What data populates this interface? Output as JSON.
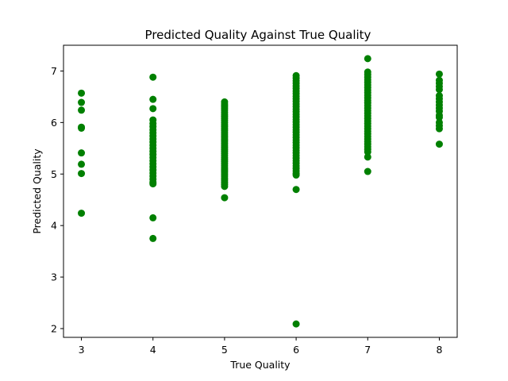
{
  "chart_data": {
    "type": "scatter",
    "title": "Predicted Quality Against True Quality",
    "xlabel": "True Quality",
    "ylabel": "Predicted Quality",
    "xlim": [
      2.75,
      8.25
    ],
    "ylim": [
      1.83,
      7.5
    ],
    "xticks": [
      3,
      4,
      5,
      6,
      7,
      8
    ],
    "yticks": [
      2,
      3,
      4,
      5,
      6,
      7
    ],
    "grid": false,
    "legend": "none",
    "marker_color": "#008000",
    "series": [
      {
        "points": [
          [
            3,
            6.57
          ],
          [
            3,
            6.39
          ],
          [
            3,
            6.24
          ],
          [
            3,
            5.91
          ],
          [
            3,
            5.89
          ],
          [
            3,
            5.41
          ],
          [
            3,
            5.19
          ],
          [
            3,
            5.01
          ],
          [
            3,
            4.24
          ],
          [
            4,
            6.88
          ],
          [
            4,
            6.45
          ],
          [
            4,
            6.27
          ],
          [
            4,
            6.05
          ],
          [
            4,
            5.98
          ],
          [
            4,
            5.92
          ],
          [
            4,
            5.86
          ],
          [
            4,
            5.8
          ],
          [
            4,
            5.74
          ],
          [
            4,
            5.68
          ],
          [
            4,
            5.62
          ],
          [
            4,
            5.56
          ],
          [
            4,
            5.5
          ],
          [
            4,
            5.44
          ],
          [
            4,
            5.38
          ],
          [
            4,
            5.32
          ],
          [
            4,
            5.26
          ],
          [
            4,
            5.2
          ],
          [
            4,
            5.14
          ],
          [
            4,
            5.08
          ],
          [
            4,
            5.02
          ],
          [
            4,
            4.96
          ],
          [
            4,
            4.9
          ],
          [
            4,
            4.84
          ],
          [
            4,
            4.81
          ],
          [
            4,
            4.15
          ],
          [
            4,
            3.75
          ],
          [
            5,
            6.4
          ],
          [
            5,
            6.36
          ],
          [
            5,
            6.32
          ],
          [
            5,
            6.28
          ],
          [
            5,
            6.24
          ],
          [
            5,
            6.2
          ],
          [
            5,
            6.16
          ],
          [
            5,
            6.12
          ],
          [
            5,
            6.08
          ],
          [
            5,
            6.04
          ],
          [
            5,
            6.0
          ],
          [
            5,
            5.96
          ],
          [
            5,
            5.92
          ],
          [
            5,
            5.88
          ],
          [
            5,
            5.84
          ],
          [
            5,
            5.8
          ],
          [
            5,
            5.76
          ],
          [
            5,
            5.72
          ],
          [
            5,
            5.68
          ],
          [
            5,
            5.64
          ],
          [
            5,
            5.6
          ],
          [
            5,
            5.56
          ],
          [
            5,
            5.52
          ],
          [
            5,
            5.48
          ],
          [
            5,
            5.44
          ],
          [
            5,
            5.4
          ],
          [
            5,
            5.36
          ],
          [
            5,
            5.32
          ],
          [
            5,
            5.28
          ],
          [
            5,
            5.24
          ],
          [
            5,
            5.2
          ],
          [
            5,
            5.16
          ],
          [
            5,
            5.12
          ],
          [
            5,
            5.08
          ],
          [
            5,
            5.04
          ],
          [
            5,
            5.0
          ],
          [
            5,
            4.96
          ],
          [
            5,
            4.92
          ],
          [
            5,
            4.88
          ],
          [
            5,
            4.84
          ],
          [
            5,
            4.8
          ],
          [
            5,
            4.76
          ],
          [
            5,
            4.54
          ],
          [
            6,
            6.91
          ],
          [
            6,
            6.86
          ],
          [
            6,
            6.81
          ],
          [
            6,
            6.76
          ],
          [
            6,
            6.71
          ],
          [
            6,
            6.66
          ],
          [
            6,
            6.61
          ],
          [
            6,
            6.56
          ],
          [
            6,
            6.51
          ],
          [
            6,
            6.46
          ],
          [
            6,
            6.41
          ],
          [
            6,
            6.36
          ],
          [
            6,
            6.31
          ],
          [
            6,
            6.26
          ],
          [
            6,
            6.21
          ],
          [
            6,
            6.16
          ],
          [
            6,
            6.11
          ],
          [
            6,
            6.06
          ],
          [
            6,
            6.01
          ],
          [
            6,
            5.96
          ],
          [
            6,
            5.91
          ],
          [
            6,
            5.86
          ],
          [
            6,
            5.81
          ],
          [
            6,
            5.76
          ],
          [
            6,
            5.71
          ],
          [
            6,
            5.66
          ],
          [
            6,
            5.61
          ],
          [
            6,
            5.56
          ],
          [
            6,
            5.51
          ],
          [
            6,
            5.46
          ],
          [
            6,
            5.41
          ],
          [
            6,
            5.36
          ],
          [
            6,
            5.31
          ],
          [
            6,
            5.26
          ],
          [
            6,
            5.21
          ],
          [
            6,
            5.16
          ],
          [
            6,
            5.11
          ],
          [
            6,
            5.06
          ],
          [
            6,
            5.01
          ],
          [
            6,
            4.98
          ],
          [
            6,
            4.7
          ],
          [
            6,
            2.09
          ],
          [
            7,
            7.24
          ],
          [
            7,
            6.98
          ],
          [
            7,
            6.93
          ],
          [
            7,
            6.88
          ],
          [
            7,
            6.83
          ],
          [
            7,
            6.78
          ],
          [
            7,
            6.73
          ],
          [
            7,
            6.68
          ],
          [
            7,
            6.63
          ],
          [
            7,
            6.58
          ],
          [
            7,
            6.53
          ],
          [
            7,
            6.48
          ],
          [
            7,
            6.43
          ],
          [
            7,
            6.38
          ],
          [
            7,
            6.33
          ],
          [
            7,
            6.28
          ],
          [
            7,
            6.23
          ],
          [
            7,
            6.18
          ],
          [
            7,
            6.13
          ],
          [
            7,
            6.08
          ],
          [
            7,
            6.03
          ],
          [
            7,
            5.98
          ],
          [
            7,
            5.93
          ],
          [
            7,
            5.88
          ],
          [
            7,
            5.83
          ],
          [
            7,
            5.78
          ],
          [
            7,
            5.73
          ],
          [
            7,
            5.68
          ],
          [
            7,
            5.63
          ],
          [
            7,
            5.58
          ],
          [
            7,
            5.53
          ],
          [
            7,
            5.48
          ],
          [
            7,
            5.43
          ],
          [
            7,
            5.33
          ],
          [
            7,
            5.05
          ],
          [
            8,
            6.94
          ],
          [
            8,
            6.82
          ],
          [
            8,
            6.76
          ],
          [
            8,
            6.7
          ],
          [
            8,
            6.64
          ],
          [
            8,
            6.52
          ],
          [
            8,
            6.46
          ],
          [
            8,
            6.4
          ],
          [
            8,
            6.34
          ],
          [
            8,
            6.28
          ],
          [
            8,
            6.22
          ],
          [
            8,
            6.14
          ],
          [
            8,
            6.1
          ],
          [
            8,
            6.0
          ],
          [
            8,
            5.94
          ],
          [
            8,
            5.88
          ],
          [
            8,
            5.58
          ]
        ]
      }
    ]
  }
}
